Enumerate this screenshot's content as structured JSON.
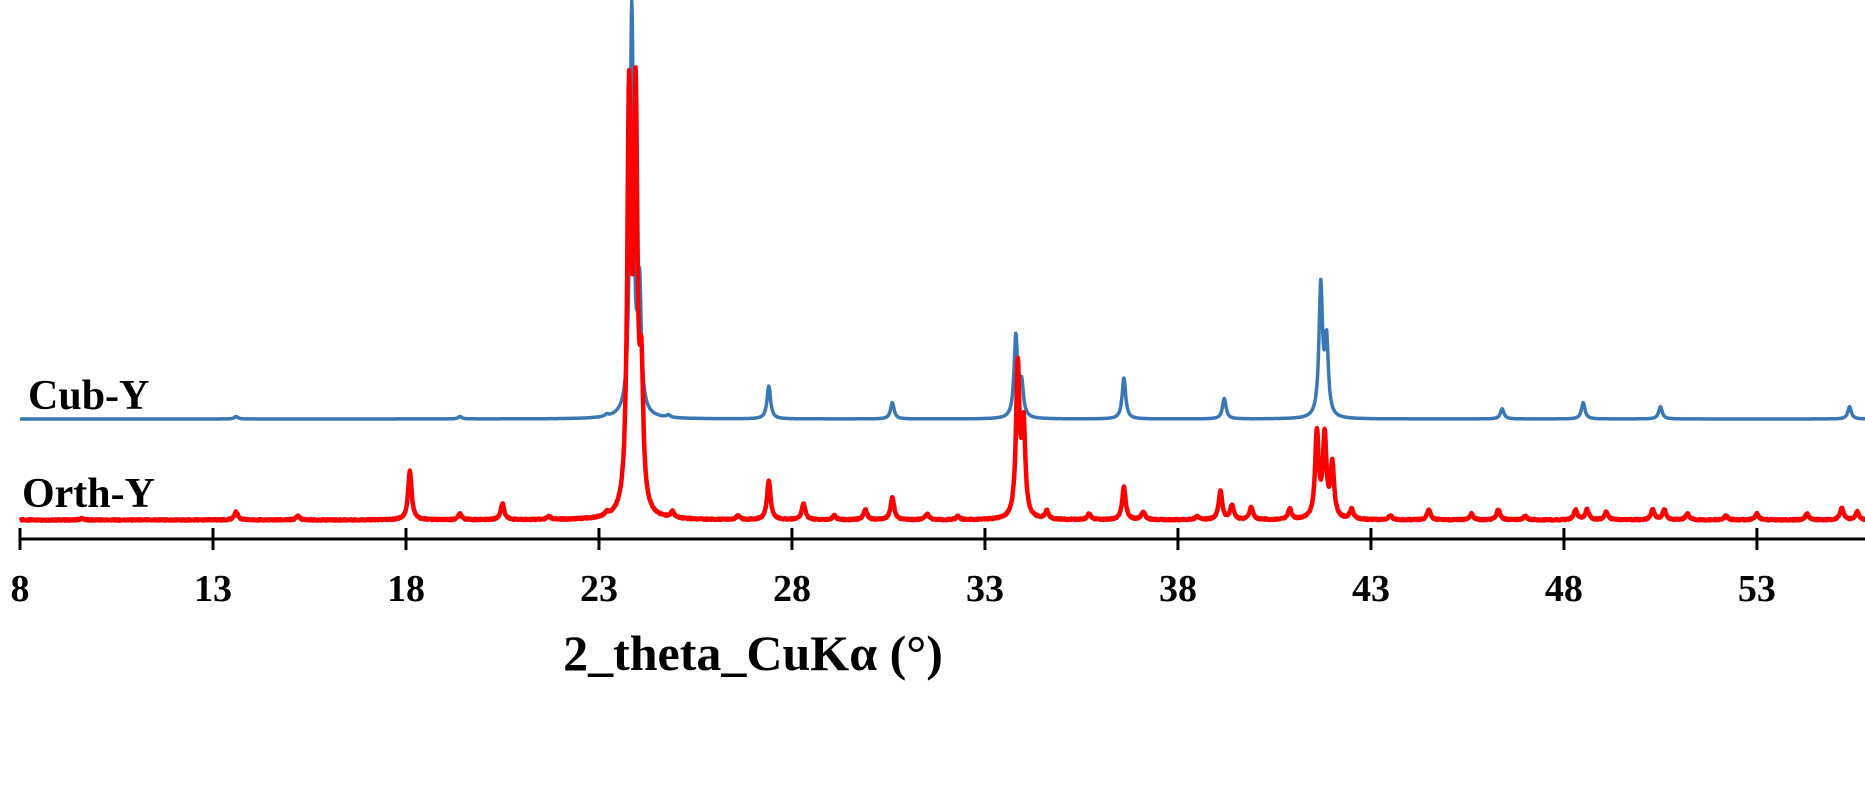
{
  "chart_data": {
    "type": "line",
    "xlabel": "2_theta_CuKα (°)",
    "ylabel": "",
    "xlim": [
      8,
      55.8
    ],
    "xticks": [
      8,
      13,
      18,
      23,
      28,
      33,
      38,
      43,
      48,
      53
    ],
    "xtick_labels": [
      "8",
      "13",
      "18",
      "23",
      "28",
      "33",
      "38",
      "43",
      "48",
      "53"
    ],
    "y_axis_shown": false,
    "grid": false,
    "legend": "none; series labelled at left of each trace",
    "series_units": "relative intensity (0 = trace baseline, 100 = tallest peak)",
    "series": [
      {
        "name": "Cub-Y",
        "color": "#3a78b5",
        "baseline": 0,
        "peaks": [
          {
            "x": 13.6,
            "y": 0.6
          },
          {
            "x": 19.4,
            "y": 0.6
          },
          {
            "x": 23.2,
            "y": 0.5
          },
          {
            "x": 23.85,
            "y": 100
          },
          {
            "x": 24.05,
            "y": 30
          },
          {
            "x": 24.8,
            "y": 0.6
          },
          {
            "x": 27.4,
            "y": 8.0
          },
          {
            "x": 30.6,
            "y": 4.0
          },
          {
            "x": 33.8,
            "y": 20.0
          },
          {
            "x": 33.95,
            "y": 8.0
          },
          {
            "x": 36.6,
            "y": 10.0
          },
          {
            "x": 39.2,
            "y": 5.0
          },
          {
            "x": 41.7,
            "y": 32.0
          },
          {
            "x": 41.85,
            "y": 18.0
          },
          {
            "x": 46.4,
            "y": 2.5
          },
          {
            "x": 48.5,
            "y": 4.0
          },
          {
            "x": 50.5,
            "y": 3.0
          },
          {
            "x": 55.4,
            "y": 3.0
          }
        ]
      },
      {
        "name": "Orth-Y",
        "color": "#ff0000",
        "baseline": 0,
        "peaks": [
          {
            "x": 9.6,
            "y": 0.4
          },
          {
            "x": 13.6,
            "y": 2.0
          },
          {
            "x": 15.2,
            "y": 1.0
          },
          {
            "x": 18.1,
            "y": 12.0
          },
          {
            "x": 19.4,
            "y": 1.5
          },
          {
            "x": 20.5,
            "y": 4.0
          },
          {
            "x": 21.7,
            "y": 0.8
          },
          {
            "x": 23.2,
            "y": 0.8
          },
          {
            "x": 23.78,
            "y": 100
          },
          {
            "x": 23.95,
            "y": 98
          },
          {
            "x": 24.1,
            "y": 30
          },
          {
            "x": 24.9,
            "y": 1.5
          },
          {
            "x": 26.6,
            "y": 1.0
          },
          {
            "x": 27.4,
            "y": 9.5
          },
          {
            "x": 28.3,
            "y": 4.0
          },
          {
            "x": 29.1,
            "y": 1.0
          },
          {
            "x": 29.9,
            "y": 2.5
          },
          {
            "x": 30.6,
            "y": 5.5
          },
          {
            "x": 31.5,
            "y": 1.5
          },
          {
            "x": 32.3,
            "y": 0.8
          },
          {
            "x": 33.85,
            "y": 37
          },
          {
            "x": 34.0,
            "y": 22
          },
          {
            "x": 34.6,
            "y": 2.0
          },
          {
            "x": 35.7,
            "y": 1.5
          },
          {
            "x": 36.6,
            "y": 8.0
          },
          {
            "x": 37.1,
            "y": 2.0
          },
          {
            "x": 38.5,
            "y": 0.8
          },
          {
            "x": 39.1,
            "y": 7.0
          },
          {
            "x": 39.4,
            "y": 3.5
          },
          {
            "x": 39.9,
            "y": 3.0
          },
          {
            "x": 40.9,
            "y": 2.5
          },
          {
            "x": 41.6,
            "y": 21.0
          },
          {
            "x": 41.8,
            "y": 20.0
          },
          {
            "x": 42.0,
            "y": 13.0
          },
          {
            "x": 42.5,
            "y": 2.5
          },
          {
            "x": 43.5,
            "y": 1.0
          },
          {
            "x": 44.5,
            "y": 2.5
          },
          {
            "x": 45.6,
            "y": 1.5
          },
          {
            "x": 46.3,
            "y": 2.5
          },
          {
            "x": 47.0,
            "y": 1.0
          },
          {
            "x": 48.3,
            "y": 2.5
          },
          {
            "x": 48.6,
            "y": 2.5
          },
          {
            "x": 49.1,
            "y": 2.0
          },
          {
            "x": 50.3,
            "y": 2.5
          },
          {
            "x": 50.6,
            "y": 2.5
          },
          {
            "x": 51.2,
            "y": 1.5
          },
          {
            "x": 52.2,
            "y": 1.0
          },
          {
            "x": 53.0,
            "y": 1.5
          },
          {
            "x": 54.3,
            "y": 1.5
          },
          {
            "x": 55.2,
            "y": 3.0
          },
          {
            "x": 55.6,
            "y": 2.0
          }
        ]
      }
    ]
  }
}
